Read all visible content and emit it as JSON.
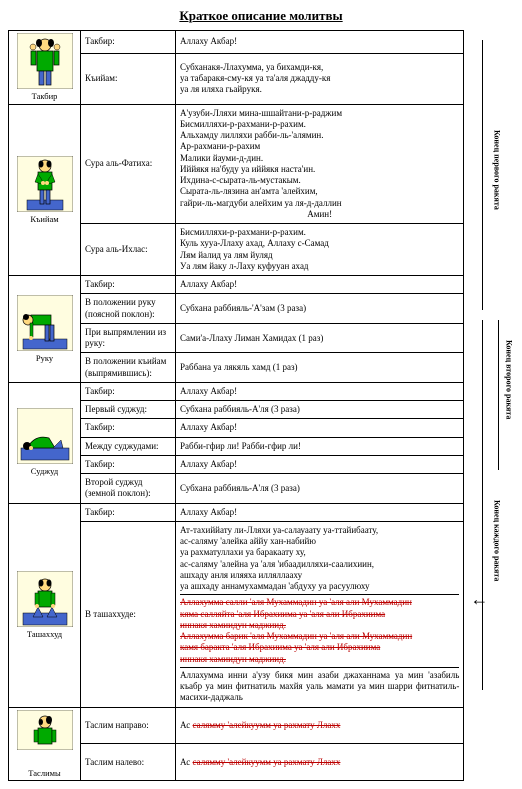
{
  "title": "Краткое описание молитвы",
  "positions": {
    "takbir": "Такбир",
    "qiyam": "Къийам",
    "ruku": "Руку",
    "sujud": "Суджуд",
    "tashahhud": "Ташаххуд",
    "taslim": "Таслимы"
  },
  "sidebars": {
    "first": "Конец первого ракята",
    "second": "Конец второго ракята",
    "each": "Конец каждого ракята"
  },
  "rows": [
    {
      "col2": "Такбир:",
      "col3": "Аллаху Акбар!"
    },
    {
      "col2": "Къийам:",
      "col3": "Субханакя-Ллахумма, уа бихамди-кя,\nуа табаракя-сму-кя уа та'аля джадду-кя\nуа ля иляха гьайрукя."
    },
    {
      "col2": "Сура аль-Фатиха:",
      "col3": "А'узуби-Лляхи мина-шшайтани-р-раджим\nБисмилляхи-р-рахмани-р-рахим.\nАльхамду лилляхи рабби-ль-'алямин.\nАр-рахмани-р-рахим\nМалики йауми-д-дин.\nИййякя на'буду уа иййякя наста'ин.\nИхдина-с-сырата-ль-мустакым.\nСырата-ль-лязина ан'амта 'алейхим,\nгайри-ль-магдуби алейхим уа ля-д-даллин\nАмин!",
      "center_last": true
    },
    {
      "col2": "Сура аль-Ихлас:",
      "col3": "Бисмилляхи-р-рахмани-р-рахим.\nКуль хууа-Ллаху ахад, Аллаху с-Самад\nЛям йалид уа лям йуляд\nУа лям йаку л-Лаху куфууан ахад"
    },
    {
      "col2": "Такбир:",
      "col3": "Аллаху Акбар!"
    },
    {
      "col2": "В положении руку (поясной поклон):",
      "col3": "Субхана раббияль-'А'зам (3 раза)"
    },
    {
      "col2": "При выпрямлении из руку:",
      "col3": "Сами'а-Ллаху Лиман Хамидах (1 раз)"
    },
    {
      "col2": "В положении къийам (выпрямившись):",
      "col3": "Раббана уа лякяль хамд (1 раз)"
    },
    {
      "col2": "Такбир:",
      "col3": "Аллаху Акбар!"
    },
    {
      "col2": "Первый суджуд:",
      "col3": "Субхана раббияль-А'ля (3 раза)"
    },
    {
      "col2": "Такбир:",
      "col3": "Аллаху Акбар!"
    },
    {
      "col2": "Между суджудами:",
      "col3": "Рабби-гфир ли! Рабби-гфир ли!"
    },
    {
      "col2": "Такбир:",
      "col3": "Аллаху Акбар!"
    },
    {
      "col2": "Второй суджуд (земной поклон):",
      "col3": "Субхана раббияль-А'ля (3 раза)"
    },
    {
      "col2": "Такбир:",
      "col3": "Аллаху Акбар!"
    },
    {
      "col2": "В ташаххуде:",
      "col3_plain": "Ат-тахиййату ли-Лляхи уа-салауаату уа-ттайибаату,\nас-саляму 'алейка аййу хан-набийю\nуа рахматуллахи уа баракаату ху,\nас-саляму 'алейна уа 'аля 'ибаадилляхи-саалихиин,\nашхаду анля иляяха илляллааху\nуа ашхаду аннамухаммадан 'абдуху уа расуулюху",
      "col3_red": "Аллахумма салли 'аля Мухаммадин уа 'аля али Мухаммадин\nкяма салляйта 'аля Ибрахиима уа 'аля али Ибрахиима\nиннакя хамиидун маджиид.\nАллахумма барик 'аля Мухаммадин уа 'аля али Мухаммадин\nкамя баракта 'аля Ибрахиима уа 'аля али Ибрахиима\nиннакя хамиидун маджиид.",
      "col3_plain2": "Аллахумма инни а'узу бикя мин азаби джаханнама уа мин 'азабиль къабр уа мин фитнатиль махйя уаль мамати уа мин шарри фитнатиль-масихи-даджаль"
    },
    {
      "col2": "Таслим направо:",
      "col3_mixed": "Ас ",
      "col3_red2": "салямму 'алейкуумм уа рахмату Ллахх"
    },
    {
      "col2": "Таслим налево:",
      "col3_mixed": "Ас ",
      "col3_red2": "салямму 'алейкуумм уа рахмату Ллахх"
    }
  ]
}
